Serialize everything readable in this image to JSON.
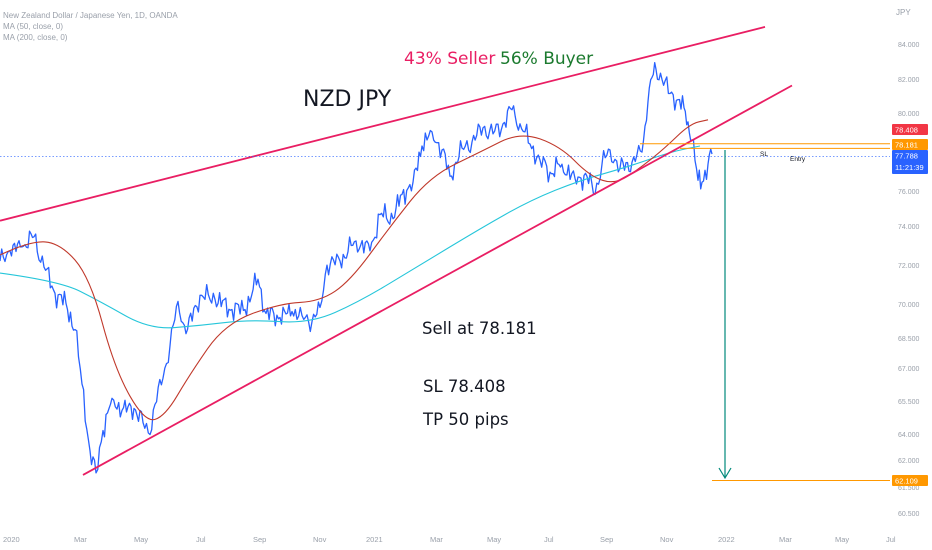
{
  "header": {
    "symbol_description": "New Zealand Dollar / Japanese Yen, 1D, OANDA",
    "indicators": [
      "MA (50, close, 0)",
      "MA (200, close, 0)"
    ],
    "currency": "JPY"
  },
  "annotations": {
    "pair": "NZD JPY",
    "seller": "43% Seller",
    "buyer": "56% Buyer",
    "sell": "Sell at 78.181",
    "sl": "SL 78.408",
    "tp": "TP 50 pips",
    "sl_tag": "SL",
    "entry_tag": "Entry"
  },
  "price_tags": [
    {
      "value": "78.408",
      "color": "#f23645"
    },
    {
      "value": "78.181",
      "color": "#ff9800"
    },
    {
      "value": "77.788",
      "sub": "11:21:39",
      "color": "#2962ff"
    },
    {
      "value": "62.109",
      "color": "#ff9800"
    }
  ],
  "colors": {
    "price": "#2962ff",
    "ma50": "#c0392b",
    "ma200": "#26c6da",
    "channel": "#e91e63",
    "seller": "#e91e63",
    "buyer": "#1b7a2e",
    "target_arrow": "#00897b"
  },
  "chart_data": {
    "type": "line",
    "y_ticks": [
      "84.000",
      "82.000",
      "80.000",
      "78.000",
      "76.000",
      "74.000",
      "72.000",
      "70.000",
      "68.500",
      "67.000",
      "65.500",
      "64.000",
      "62.000",
      "61.500",
      "60.500"
    ],
    "x_ticks": [
      "2020",
      "Mar",
      "May",
      "Jul",
      "Sep",
      "Nov",
      "2021",
      "Mar",
      "May",
      "Jul",
      "Sep",
      "Nov",
      "2022",
      "Mar",
      "May",
      "Jul"
    ],
    "series": [
      {
        "name": "MA (50, close, 0)",
        "values": [
          [
            0,
            72.9
          ],
          [
            30,
            73.6
          ],
          [
            60,
            73.5
          ],
          [
            90,
            71.8
          ],
          [
            115,
            67.2
          ],
          [
            145,
            64.6
          ],
          [
            165,
            64.9
          ],
          [
            190,
            67.0
          ],
          [
            225,
            69.5
          ],
          [
            280,
            70.5
          ],
          [
            320,
            70.6
          ],
          [
            350,
            71.6
          ],
          [
            390,
            74.3
          ],
          [
            430,
            76.8
          ],
          [
            480,
            78.0
          ],
          [
            520,
            79.0
          ],
          [
            560,
            78.3
          ],
          [
            590,
            76.8
          ],
          [
            615,
            76.4
          ],
          [
            640,
            77.2
          ],
          [
            665,
            78.2
          ],
          [
            690,
            79.4
          ],
          [
            708,
            79.6
          ]
        ]
      },
      {
        "name": "MA (200, close, 0)",
        "values": [
          [
            0,
            72.0
          ],
          [
            60,
            71.6
          ],
          [
            100,
            70.6
          ],
          [
            150,
            69.2
          ],
          [
            200,
            69.4
          ],
          [
            250,
            69.7
          ],
          [
            310,
            69.5
          ],
          [
            360,
            70.6
          ],
          [
            420,
            72.4
          ],
          [
            480,
            74.2
          ],
          [
            530,
            75.6
          ],
          [
            580,
            76.6
          ],
          [
            630,
            77.3
          ],
          [
            670,
            78.0
          ],
          [
            700,
            78.3
          ]
        ]
      }
    ],
    "channel_lines": [
      {
        "name": "upper",
        "points": [
          [
            0,
            74.6
          ],
          [
            765,
            84.2
          ]
        ]
      },
      {
        "name": "lower",
        "points": [
          [
            83,
            62.0
          ],
          [
            792,
            81.3
          ]
        ]
      }
    ],
    "levels": [
      {
        "name": "SL",
        "price": 78.408
      },
      {
        "name": "Entry",
        "price": 78.181
      },
      {
        "name": "Target",
        "price": 62.109
      }
    ]
  }
}
